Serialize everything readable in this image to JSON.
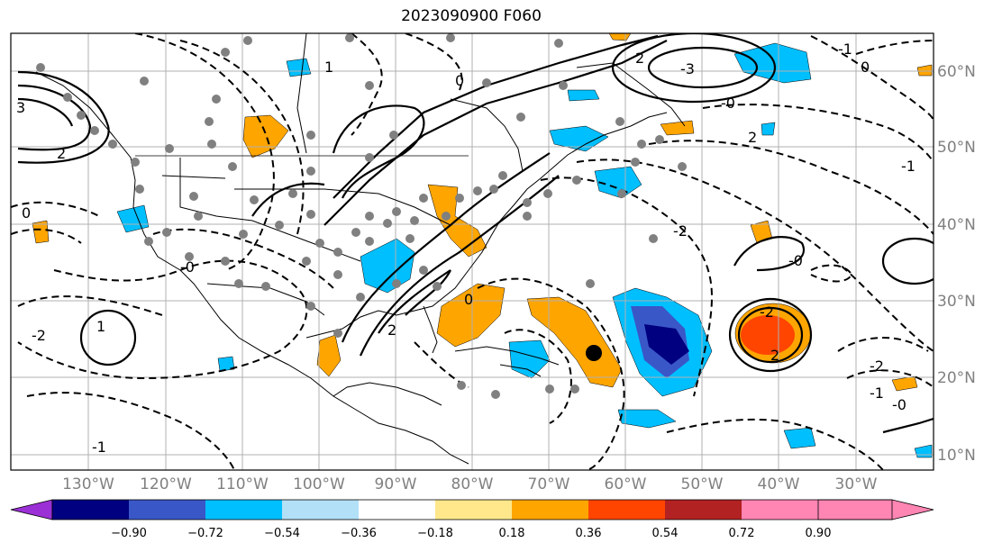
{
  "title": "2023090900 F060",
  "lon_ticks": [
    "130°W",
    "120°W",
    "110°W",
    "100°W",
    "90°W",
    "80°W",
    "70°W",
    "60°W",
    "50°W",
    "40°W",
    "30°W"
  ],
  "lat_ticks": [
    "60°N",
    "50°N",
    "40°N",
    "30°N",
    "20°N",
    "10°N"
  ],
  "colorbar": {
    "labels": [
      "−0.90",
      "−0.72",
      "−0.54",
      "−0.36",
      "−0.18",
      "0.18",
      "0.36",
      "0.54",
      "0.72",
      "0.90"
    ],
    "colors": [
      "#9b30d6",
      "#000080",
      "#3a57c8",
      "#00bfff",
      "#b2e0f7",
      "#ffffff",
      "#ffe88c",
      "#ffa500",
      "#ff4500",
      "#b22222",
      "#ff85b3"
    ]
  },
  "contour_labels": [
    "0",
    "-2",
    "-1",
    "3",
    "2",
    "-0",
    "1",
    "-3"
  ],
  "markers": {
    "storm_center": "black dot"
  }
}
